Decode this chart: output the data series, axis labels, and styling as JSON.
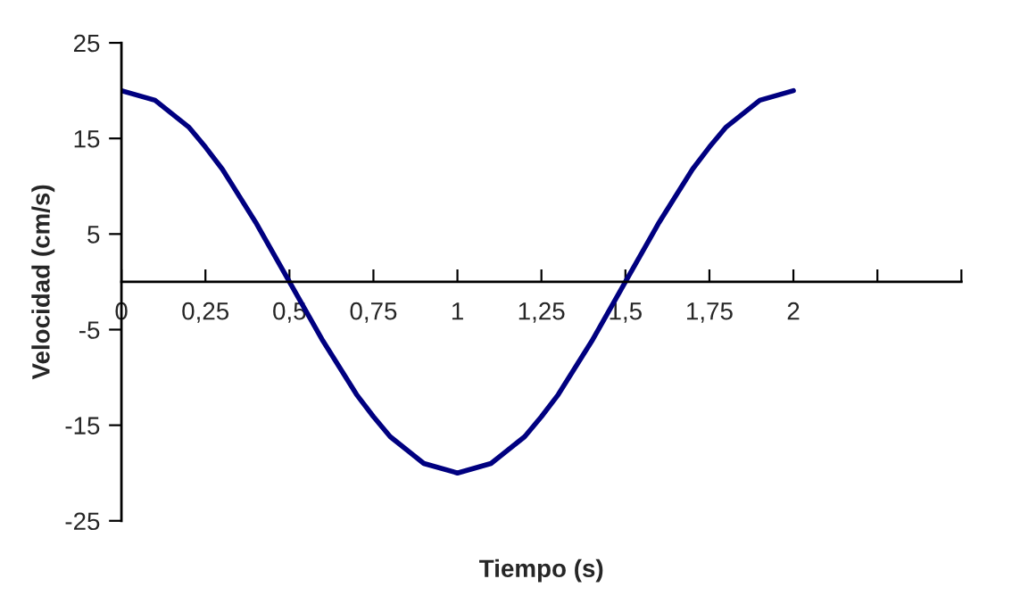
{
  "chart_data": {
    "type": "line",
    "xlabel": "Tiempo (s)",
    "ylabel": "Velocidad (cm/s)",
    "x": [
      0,
      0.1,
      0.2,
      0.25,
      0.3,
      0.4,
      0.5,
      0.6,
      0.7,
      0.75,
      0.8,
      0.9,
      1,
      1.1,
      1.2,
      1.25,
      1.3,
      1.4,
      1.5,
      1.6,
      1.7,
      1.75,
      1.8,
      1.9,
      2
    ],
    "series": [
      {
        "color": "#000080",
        "values": [
          20,
          19,
          16.2,
          14.1,
          11.8,
          6.2,
          0,
          -6.2,
          -11.8,
          -14.1,
          -16.2,
          -19,
          -20,
          -19,
          -16.2,
          -14.1,
          -11.8,
          -6.2,
          0,
          6.2,
          11.8,
          14.1,
          16.2,
          19,
          20
        ]
      }
    ],
    "xlim": [
      0,
      2.5
    ],
    "xticks": [
      0,
      {
        "value": 0.25,
        "label": "0,25"
      },
      {
        "value": 0.5,
        "label": "0,5"
      },
      {
        "value": 0.75,
        "label": "0,75"
      },
      1,
      {
        "value": 1.25,
        "label": "1,25"
      },
      {
        "value": 1.5,
        "label": "1,5"
      },
      {
        "value": 1.75,
        "label": "1,75"
      },
      2,
      {
        "value": 2.25,
        "label": null
      },
      {
        "value": 2.5,
        "label": null
      }
    ],
    "ylim": [
      -25,
      25
    ],
    "yticks": [
      -25,
      -15,
      -5,
      5,
      15,
      25
    ],
    "grid": false,
    "legend": false,
    "marker": "none",
    "line_style": "solid"
  }
}
